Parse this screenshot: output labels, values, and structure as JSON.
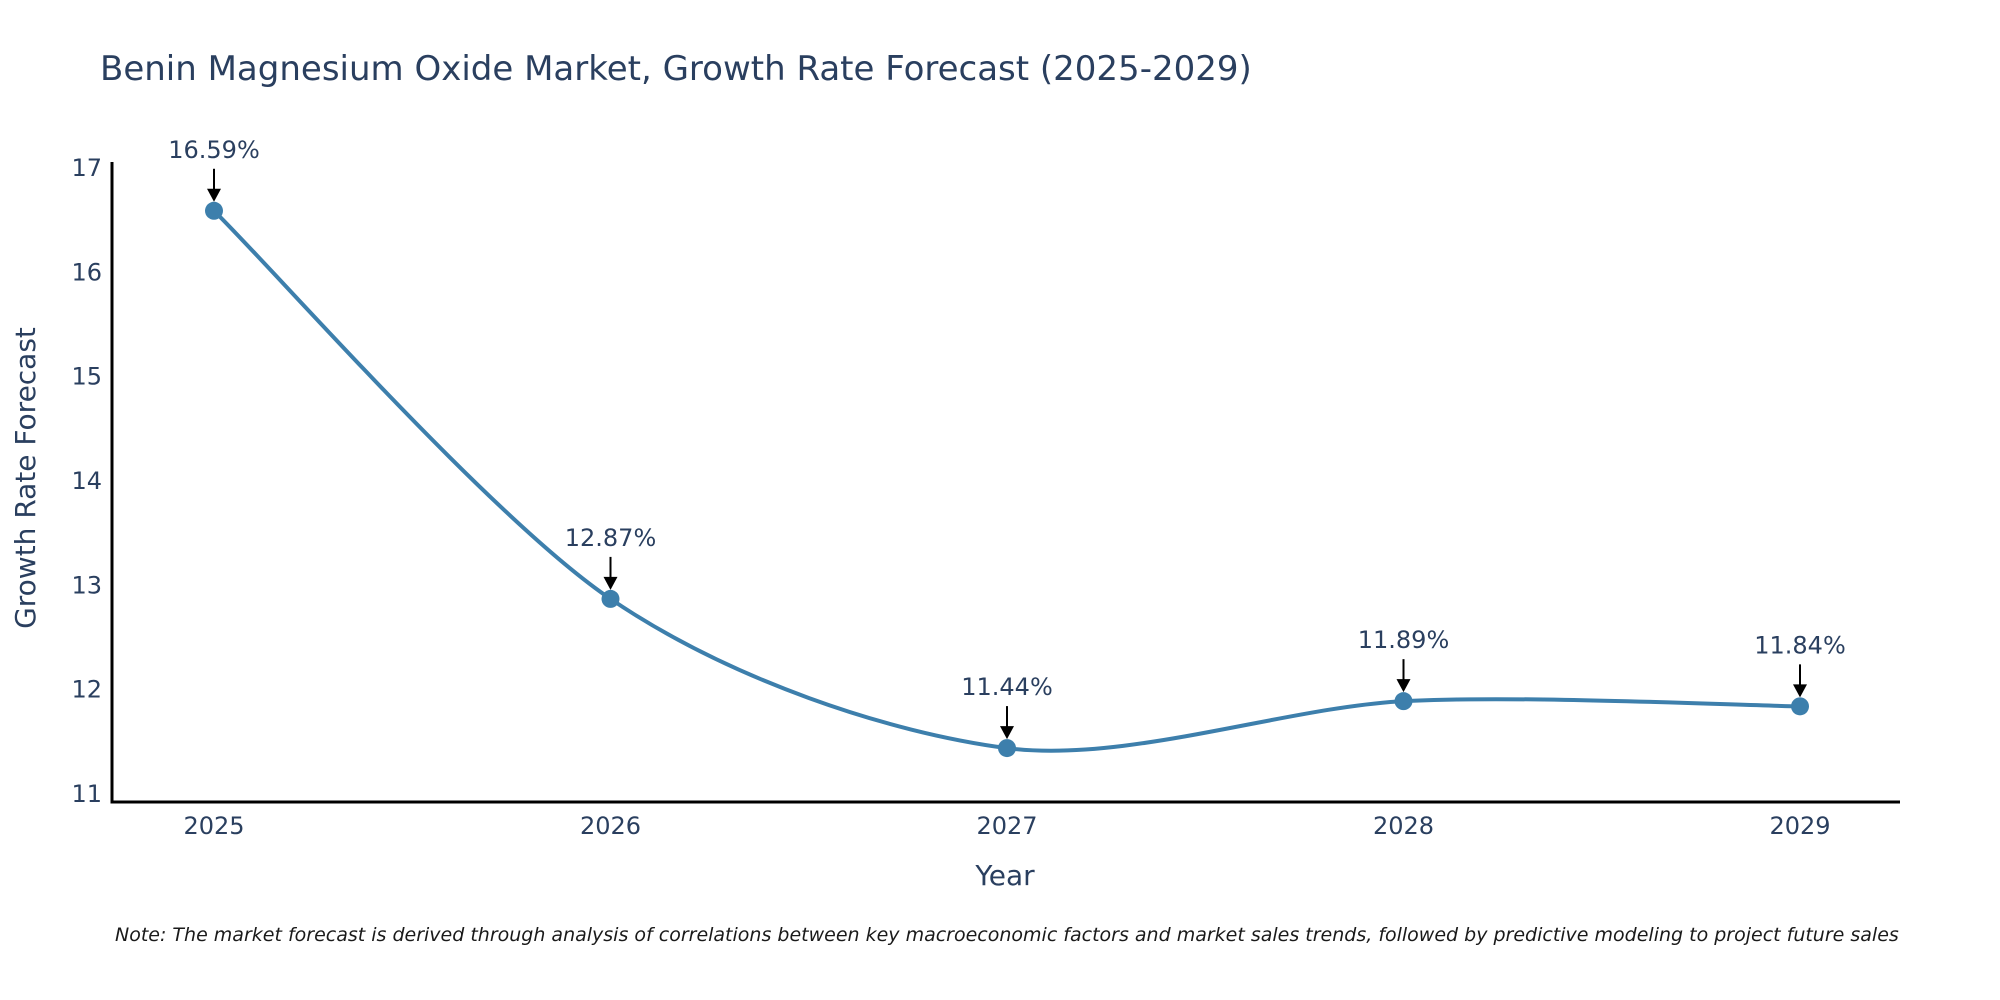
{
  "chart_data": {
    "type": "line",
    "title": "Benin Magnesium Oxide Market, Growth Rate Forecast (2025-2029)",
    "xlabel": "Year",
    "ylabel": "Growth Rate Forecast",
    "x": [
      "2025",
      "2026",
      "2027",
      "2028",
      "2029"
    ],
    "values": [
      16.59,
      12.87,
      11.44,
      11.89,
      11.84
    ],
    "labels": [
      "16.59%",
      "12.87%",
      "11.44%",
      "11.89%",
      "11.84%"
    ],
    "ylim": [
      11,
      17
    ],
    "yticks": [
      "11",
      "12",
      "13",
      "14",
      "15",
      "16",
      "17"
    ],
    "line_color": "#3d7fac",
    "marker_color": "#3d7fac",
    "grid": false,
    "note": "Note: The market forecast is derived through analysis of correlations between key macroeconomic factors and market sales trends, followed by predictive modeling to project future sales"
  }
}
